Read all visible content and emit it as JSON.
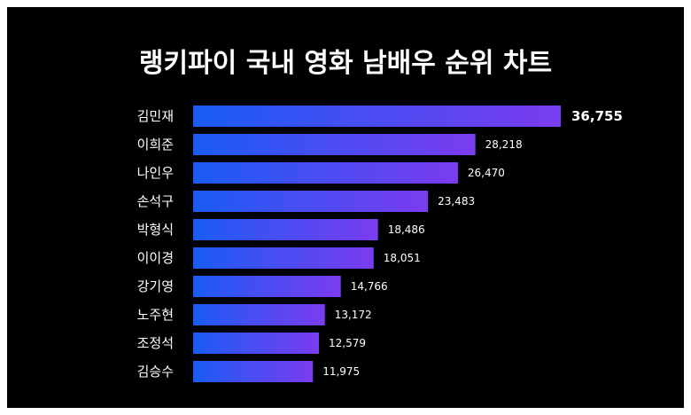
{
  "chart_data": {
    "type": "bar",
    "orientation": "horizontal",
    "title": "랭키파이 국내 영화 남배우 순위 차트",
    "categories": [
      "김민재",
      "이희준",
      "나인우",
      "손석구",
      "박형식",
      "이이경",
      "강기영",
      "노주현",
      "조정석",
      "김승수"
    ],
    "values": [
      36755,
      28218,
      26470,
      23483,
      18486,
      18051,
      14766,
      13172,
      12579,
      11975
    ],
    "value_labels": [
      "36,755",
      "28,218",
      "26,470",
      "23,483",
      "18,486",
      "18,051",
      "14,766",
      "13,172",
      "12,579",
      "11,975"
    ],
    "xlim": [
      0,
      36755
    ],
    "grid": false,
    "legend": "none",
    "colors": {
      "background": "#000000",
      "bar_start": "#1a5cf5",
      "bar_end": "#7b3cf0",
      "text": "#ffffff"
    }
  }
}
